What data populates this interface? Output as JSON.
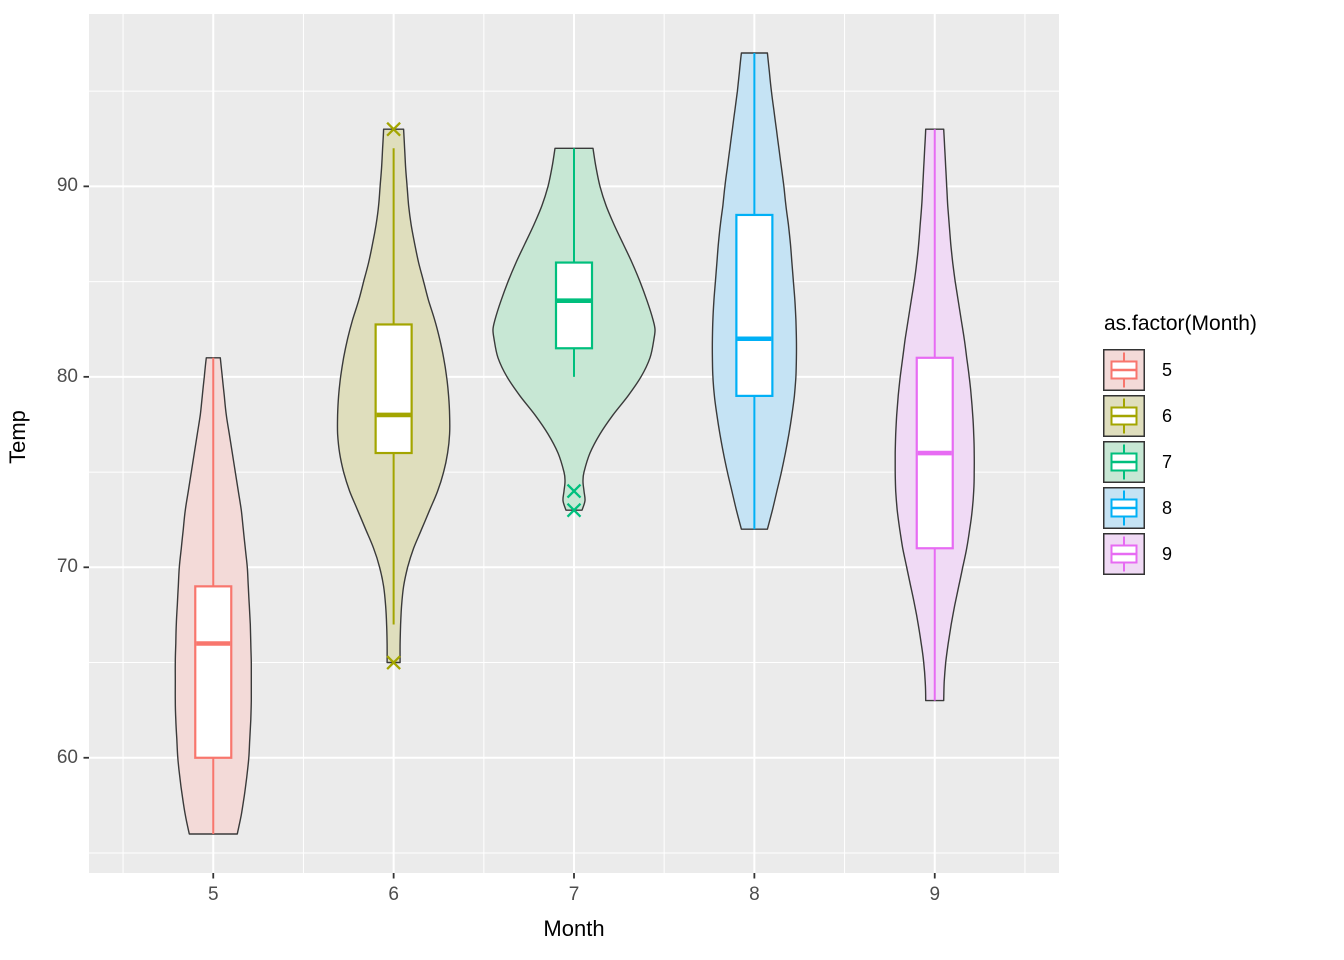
{
  "chart_data": {
    "type": "violin-boxplot",
    "title": "",
    "xlabel": "Month",
    "ylabel": "Temp",
    "x_ticks": [
      "5",
      "6",
      "7",
      "8",
      "9"
    ],
    "y_ticks": [
      "60",
      "70",
      "80",
      "90"
    ],
    "x_major": [
      5,
      6,
      7,
      8,
      9
    ],
    "x_minor": [
      4.5,
      5.5,
      6.5,
      7.5,
      8.5,
      9.5
    ],
    "y_major": [
      60,
      70,
      80,
      90
    ],
    "y_minor": [
      55,
      65,
      75,
      85,
      95
    ],
    "xlim": [
      4.3111,
      9.6889
    ],
    "ylim": [
      53.95,
      99.05
    ],
    "grid": true,
    "panel_background": "#EBEBEB",
    "gridline_color": "#FFFFFF",
    "violin_outline_color": "#3A3A3A",
    "tick_text_color": "#4D4D4D",
    "groups": [
      {
        "month": "5",
        "color": "#F8766D",
        "fill": "#F3DAD8",
        "box": {
          "whisker_low": 56,
          "q1": 60,
          "median": 66,
          "q3": 69,
          "whisker_high": 81
        },
        "outliers": [],
        "violin": [
          [
            81,
            7
          ],
          [
            80,
            9
          ],
          [
            79,
            11
          ],
          [
            78,
            13
          ],
          [
            77,
            16
          ],
          [
            76,
            19
          ],
          [
            75,
            22
          ],
          [
            74,
            25
          ],
          [
            73,
            28
          ],
          [
            72,
            30
          ],
          [
            71,
            32
          ],
          [
            70,
            34
          ],
          [
            69,
            35
          ],
          [
            68,
            36
          ],
          [
            67,
            37
          ],
          [
            66,
            37.5
          ],
          [
            65,
            38
          ],
          [
            64,
            38
          ],
          [
            63,
            38
          ],
          [
            62,
            37.5
          ],
          [
            61,
            36.5
          ],
          [
            60,
            35.5
          ],
          [
            59,
            33.5
          ],
          [
            58,
            31
          ],
          [
            57,
            28
          ],
          [
            56,
            24
          ]
        ]
      },
      {
        "month": "6",
        "color": "#A3A500",
        "fill": "#DFDEBD",
        "box": {
          "whisker_low": 67,
          "q1": 76,
          "median": 78,
          "q3": 82.75,
          "whisker_high": 92
        },
        "outliers": [
          93,
          65
        ],
        "violin": [
          [
            93,
            10
          ],
          [
            92,
            11
          ],
          [
            91,
            12
          ],
          [
            90,
            13.5
          ],
          [
            89,
            15
          ],
          [
            88,
            17.5
          ],
          [
            87,
            21
          ],
          [
            86,
            25
          ],
          [
            85,
            30
          ],
          [
            84,
            35
          ],
          [
            83,
            41
          ],
          [
            82,
            46
          ],
          [
            81,
            50
          ],
          [
            80,
            53
          ],
          [
            79,
            55
          ],
          [
            78,
            56
          ],
          [
            77,
            56
          ],
          [
            76,
            54
          ],
          [
            75,
            50
          ],
          [
            74,
            44
          ],
          [
            73,
            36
          ],
          [
            72,
            28
          ],
          [
            71,
            20
          ],
          [
            70,
            14
          ],
          [
            69,
            10
          ],
          [
            68,
            8
          ],
          [
            67,
            7
          ],
          [
            66,
            6.5
          ],
          [
            65,
            6.5
          ]
        ]
      },
      {
        "month": "7",
        "color": "#00BF7D",
        "fill": "#C7E7D4",
        "box": {
          "whisker_low": 80,
          "q1": 81.5,
          "median": 84,
          "q3": 86,
          "whisker_high": 92
        },
        "outliers": [
          74,
          73
        ],
        "violin": [
          [
            92,
            19
          ],
          [
            91,
            22
          ],
          [
            90,
            26
          ],
          [
            89,
            32
          ],
          [
            88,
            40
          ],
          [
            87,
            49
          ],
          [
            86,
            58
          ],
          [
            85,
            66
          ],
          [
            84,
            73
          ],
          [
            83,
            79
          ],
          [
            82.5,
            81
          ],
          [
            82,
            80
          ],
          [
            81,
            76
          ],
          [
            80,
            67
          ],
          [
            79,
            54
          ],
          [
            78,
            39
          ],
          [
            77,
            26
          ],
          [
            76,
            16
          ],
          [
            75,
            10
          ],
          [
            74.5,
            9
          ],
          [
            74,
            10
          ],
          [
            73.5,
            11
          ],
          [
            73,
            8
          ]
        ]
      },
      {
        "month": "8",
        "color": "#00B0F6",
        "fill": "#C5E3F4",
        "box": {
          "whisker_low": 72,
          "q1": 79,
          "median": 82,
          "q3": 88.5,
          "whisker_high": 97
        },
        "outliers": [],
        "violin": [
          [
            97,
            13
          ],
          [
            96,
            15
          ],
          [
            95,
            17
          ],
          [
            94,
            19.5
          ],
          [
            93,
            22
          ],
          [
            92,
            24.5
          ],
          [
            91,
            27
          ],
          [
            90,
            29.5
          ],
          [
            89,
            31.5
          ],
          [
            88,
            34
          ],
          [
            87,
            36
          ],
          [
            86,
            37.5
          ],
          [
            85,
            39
          ],
          [
            84,
            40.5
          ],
          [
            83,
            41.5
          ],
          [
            82,
            42
          ],
          [
            81,
            42
          ],
          [
            80,
            41.5
          ],
          [
            79,
            40
          ],
          [
            78,
            37.5
          ],
          [
            77,
            34.5
          ],
          [
            76,
            31
          ],
          [
            75,
            27
          ],
          [
            74,
            22.5
          ],
          [
            73,
            18
          ],
          [
            72,
            13
          ]
        ]
      },
      {
        "month": "9",
        "color": "#E76BF3",
        "fill": "#F0DAF5",
        "box": {
          "whisker_low": 63,
          "q1": 71,
          "median": 76,
          "q3": 81,
          "whisker_high": 93
        },
        "outliers": [],
        "violin": [
          [
            93,
            9
          ],
          [
            92,
            10
          ],
          [
            91,
            11
          ],
          [
            90,
            12
          ],
          [
            89,
            13
          ],
          [
            88,
            14.5
          ],
          [
            87,
            16
          ],
          [
            86,
            18
          ],
          [
            85,
            20.5
          ],
          [
            84,
            23.5
          ],
          [
            83,
            26.5
          ],
          [
            82,
            29.5
          ],
          [
            81,
            32
          ],
          [
            80,
            34.5
          ],
          [
            79,
            36.5
          ],
          [
            78,
            38
          ],
          [
            77,
            39
          ],
          [
            76,
            39.5
          ],
          [
            75,
            39.5
          ],
          [
            74,
            39
          ],
          [
            73,
            37.5
          ],
          [
            72,
            35
          ],
          [
            71,
            32
          ],
          [
            70,
            28
          ],
          [
            69,
            24
          ],
          [
            68,
            20
          ],
          [
            67,
            16.5
          ],
          [
            66,
            13.5
          ],
          [
            65,
            11
          ],
          [
            64,
            9.5
          ],
          [
            63,
            9
          ]
        ]
      }
    ]
  },
  "legend": {
    "title": "as.factor(Month)",
    "items": [
      {
        "label": "5",
        "color": "#F8766D",
        "fill": "#F3DAD8"
      },
      {
        "label": "6",
        "color": "#A3A500",
        "fill": "#DFDEBD"
      },
      {
        "label": "7",
        "color": "#00BF7D",
        "fill": "#C7E7D4"
      },
      {
        "label": "8",
        "color": "#00B0F6",
        "fill": "#C5E3F4"
      },
      {
        "label": "9",
        "color": "#E76BF3",
        "fill": "#F0DAF5"
      }
    ]
  }
}
